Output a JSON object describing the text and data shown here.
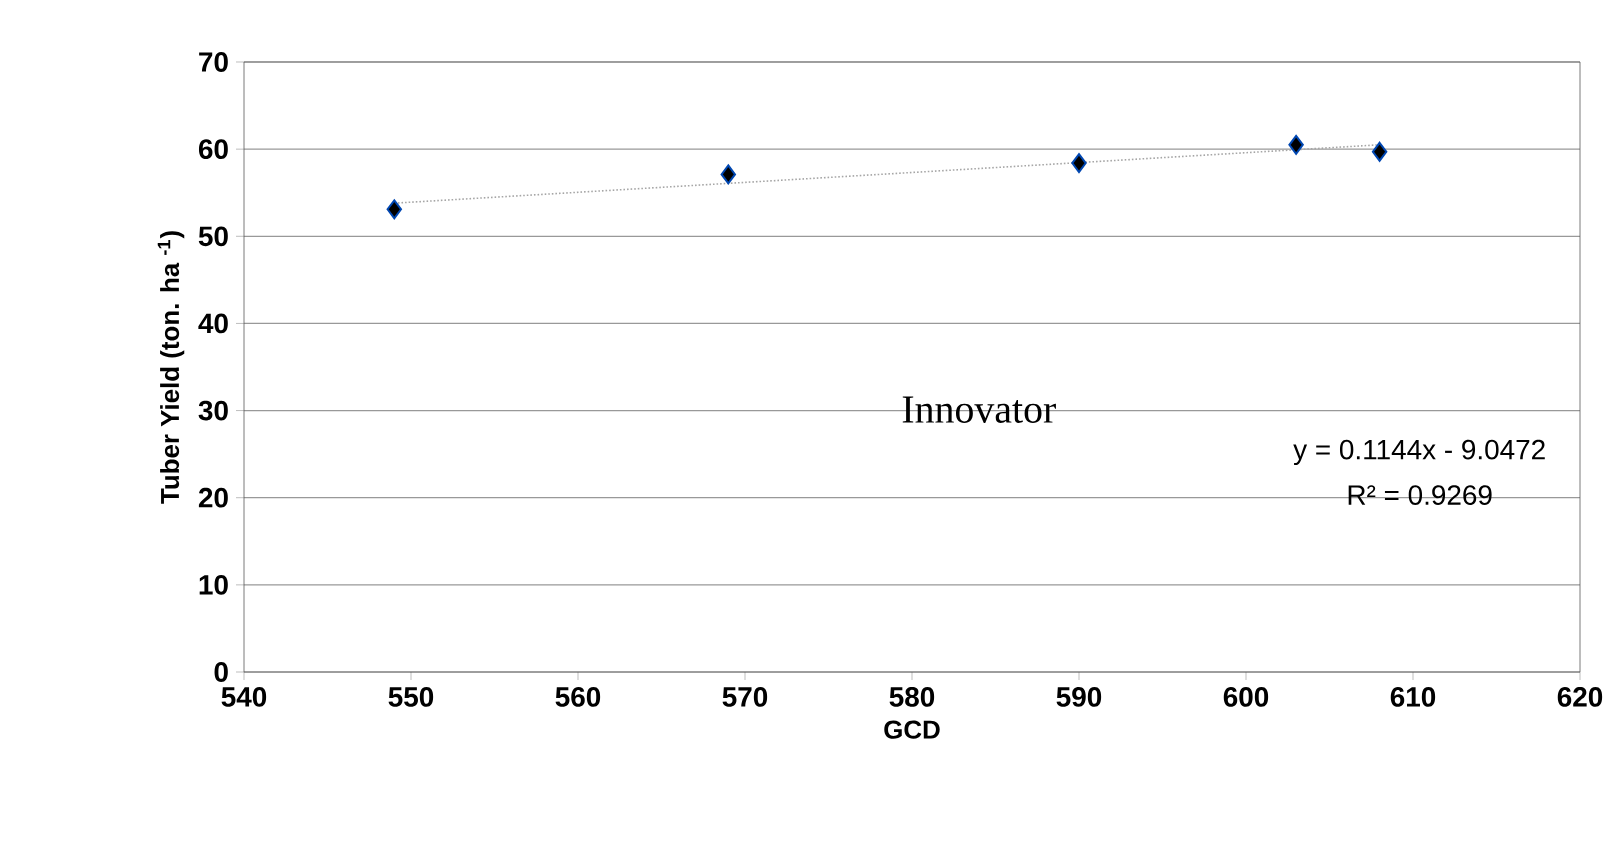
{
  "chart_data": {
    "type": "scatter",
    "xlabel": "GCD",
    "ylabel": "Tuber Yield (ton. ha $^{-1}$)",
    "xlim": [
      540,
      620
    ],
    "xticks": [
      540,
      550,
      560,
      570,
      580,
      590,
      600,
      610,
      620
    ],
    "ylim": [
      0,
      70
    ],
    "yticks": [
      0,
      10,
      20,
      30,
      40,
      50,
      60,
      70
    ],
    "grid": "y",
    "marker": "diamond",
    "series": [
      {
        "color": "#000000",
        "x": [
          549,
          569,
          590,
          603,
          608
        ],
        "values": [
          53.1,
          57.1,
          58.4,
          60.5,
          59.7
        ]
      },
      {
        "type": "line",
        "color": "#a6a6a6",
        "line_style": "dotted",
        "marker": "none",
        "x": [
          549,
          608
        ],
        "values": [
          53.8,
          60.5
        ]
      }
    ],
    "annotations": [
      "Innovator",
      "y = 0.1144x - 9.0472",
      "R² = 0.9269"
    ]
  }
}
